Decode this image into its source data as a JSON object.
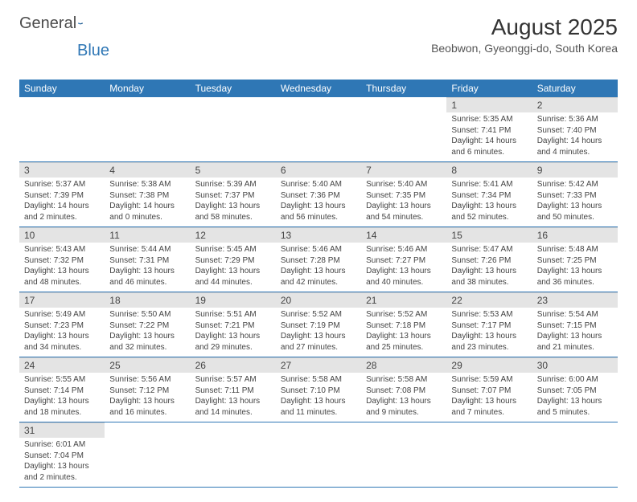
{
  "logo": {
    "text1": "General",
    "text2": "Blue"
  },
  "title": "August 2025",
  "subtitle": "Beobwon, Gyeonggi-do, South Korea",
  "colors": {
    "header_bg": "#2f77b5",
    "header_fg": "#ffffff",
    "daynum_bg": "#e4e4e4",
    "row_divider": "#2f77b5"
  },
  "day_names": [
    "Sunday",
    "Monday",
    "Tuesday",
    "Wednesday",
    "Thursday",
    "Friday",
    "Saturday"
  ],
  "weeks": [
    [
      null,
      null,
      null,
      null,
      null,
      {
        "n": "1",
        "sr": "5:35 AM",
        "ss": "7:41 PM",
        "dl": "14 hours and 6 minutes."
      },
      {
        "n": "2",
        "sr": "5:36 AM",
        "ss": "7:40 PM",
        "dl": "14 hours and 4 minutes."
      }
    ],
    [
      {
        "n": "3",
        "sr": "5:37 AM",
        "ss": "7:39 PM",
        "dl": "14 hours and 2 minutes."
      },
      {
        "n": "4",
        "sr": "5:38 AM",
        "ss": "7:38 PM",
        "dl": "14 hours and 0 minutes."
      },
      {
        "n": "5",
        "sr": "5:39 AM",
        "ss": "7:37 PM",
        "dl": "13 hours and 58 minutes."
      },
      {
        "n": "6",
        "sr": "5:40 AM",
        "ss": "7:36 PM",
        "dl": "13 hours and 56 minutes."
      },
      {
        "n": "7",
        "sr": "5:40 AM",
        "ss": "7:35 PM",
        "dl": "13 hours and 54 minutes."
      },
      {
        "n": "8",
        "sr": "5:41 AM",
        "ss": "7:34 PM",
        "dl": "13 hours and 52 minutes."
      },
      {
        "n": "9",
        "sr": "5:42 AM",
        "ss": "7:33 PM",
        "dl": "13 hours and 50 minutes."
      }
    ],
    [
      {
        "n": "10",
        "sr": "5:43 AM",
        "ss": "7:32 PM",
        "dl": "13 hours and 48 minutes."
      },
      {
        "n": "11",
        "sr": "5:44 AM",
        "ss": "7:31 PM",
        "dl": "13 hours and 46 minutes."
      },
      {
        "n": "12",
        "sr": "5:45 AM",
        "ss": "7:29 PM",
        "dl": "13 hours and 44 minutes."
      },
      {
        "n": "13",
        "sr": "5:46 AM",
        "ss": "7:28 PM",
        "dl": "13 hours and 42 minutes."
      },
      {
        "n": "14",
        "sr": "5:46 AM",
        "ss": "7:27 PM",
        "dl": "13 hours and 40 minutes."
      },
      {
        "n": "15",
        "sr": "5:47 AM",
        "ss": "7:26 PM",
        "dl": "13 hours and 38 minutes."
      },
      {
        "n": "16",
        "sr": "5:48 AM",
        "ss": "7:25 PM",
        "dl": "13 hours and 36 minutes."
      }
    ],
    [
      {
        "n": "17",
        "sr": "5:49 AM",
        "ss": "7:23 PM",
        "dl": "13 hours and 34 minutes."
      },
      {
        "n": "18",
        "sr": "5:50 AM",
        "ss": "7:22 PM",
        "dl": "13 hours and 32 minutes."
      },
      {
        "n": "19",
        "sr": "5:51 AM",
        "ss": "7:21 PM",
        "dl": "13 hours and 29 minutes."
      },
      {
        "n": "20",
        "sr": "5:52 AM",
        "ss": "7:19 PM",
        "dl": "13 hours and 27 minutes."
      },
      {
        "n": "21",
        "sr": "5:52 AM",
        "ss": "7:18 PM",
        "dl": "13 hours and 25 minutes."
      },
      {
        "n": "22",
        "sr": "5:53 AM",
        "ss": "7:17 PM",
        "dl": "13 hours and 23 minutes."
      },
      {
        "n": "23",
        "sr": "5:54 AM",
        "ss": "7:15 PM",
        "dl": "13 hours and 21 minutes."
      }
    ],
    [
      {
        "n": "24",
        "sr": "5:55 AM",
        "ss": "7:14 PM",
        "dl": "13 hours and 18 minutes."
      },
      {
        "n": "25",
        "sr": "5:56 AM",
        "ss": "7:12 PM",
        "dl": "13 hours and 16 minutes."
      },
      {
        "n": "26",
        "sr": "5:57 AM",
        "ss": "7:11 PM",
        "dl": "13 hours and 14 minutes."
      },
      {
        "n": "27",
        "sr": "5:58 AM",
        "ss": "7:10 PM",
        "dl": "13 hours and 11 minutes."
      },
      {
        "n": "28",
        "sr": "5:58 AM",
        "ss": "7:08 PM",
        "dl": "13 hours and 9 minutes."
      },
      {
        "n": "29",
        "sr": "5:59 AM",
        "ss": "7:07 PM",
        "dl": "13 hours and 7 minutes."
      },
      {
        "n": "30",
        "sr": "6:00 AM",
        "ss": "7:05 PM",
        "dl": "13 hours and 5 minutes."
      }
    ],
    [
      {
        "n": "31",
        "sr": "6:01 AM",
        "ss": "7:04 PM",
        "dl": "13 hours and 2 minutes."
      },
      null,
      null,
      null,
      null,
      null,
      null
    ]
  ],
  "labels": {
    "sunrise": "Sunrise:",
    "sunset": "Sunset:",
    "daylight": "Daylight:"
  }
}
